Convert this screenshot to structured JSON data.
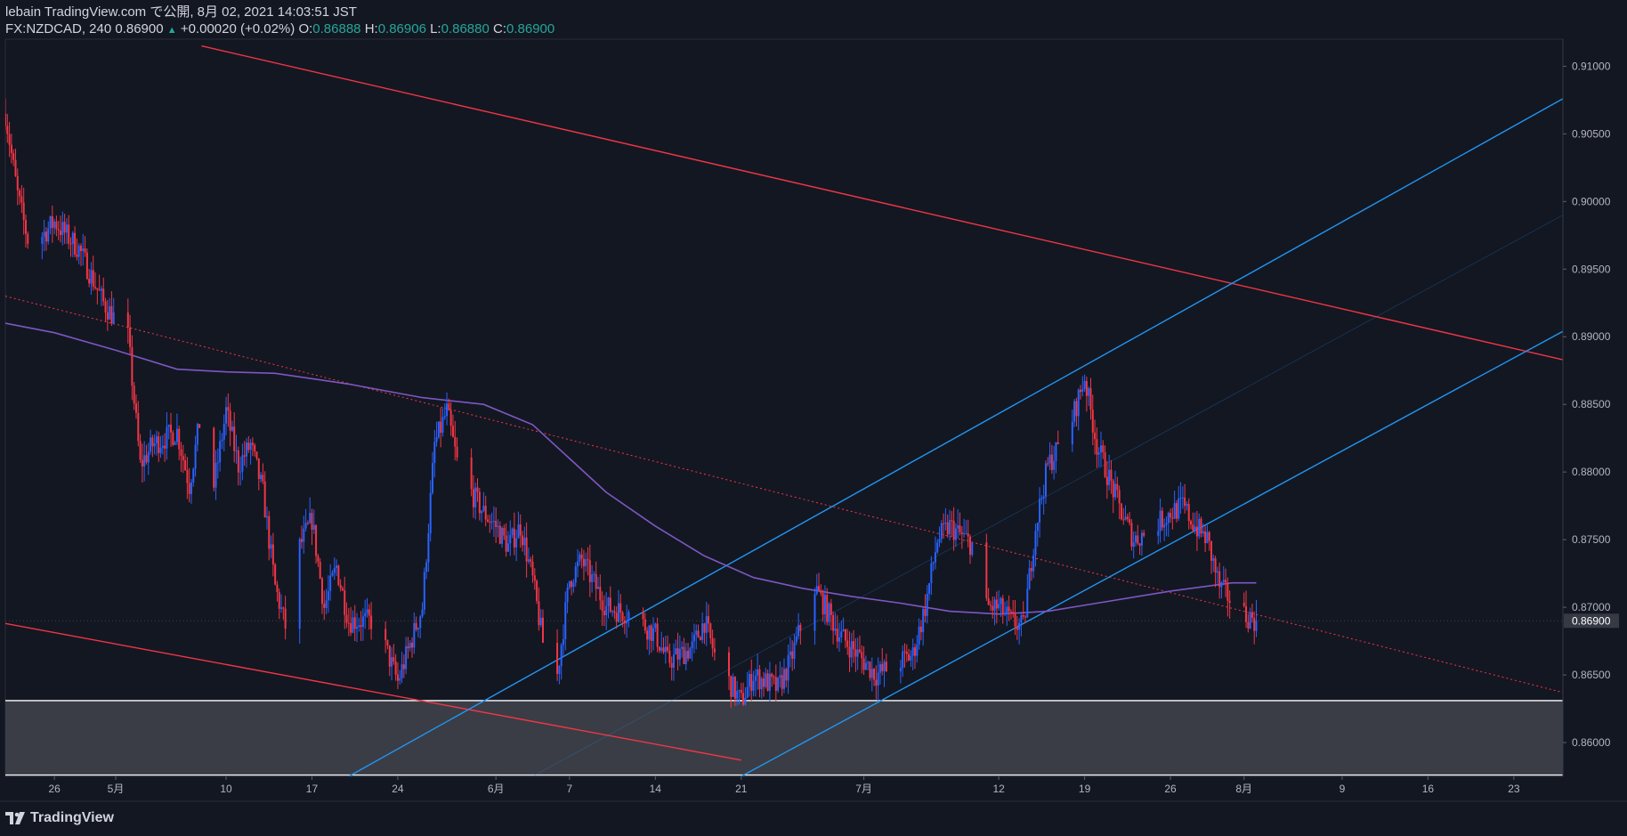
{
  "header": {
    "publish_line": "lebain TradingView.com で公開, 8月 02, 2021 14:03:51 JST",
    "symbol_line": "FX:NZDCAD, 240 0.86900",
    "change": "+0.00020 (+0.02%)",
    "o_label": "O:",
    "o_value": "0.86888",
    "h_label": "H:",
    "h_value": "0.86906",
    "l_label": "L:",
    "l_value": "0.86880",
    "c_label": "C:",
    "c_value": "0.86900"
  },
  "footer": {
    "brand": "TradingView",
    "logo_icon": "tradingview-logo-icon"
  },
  "colors": {
    "background": "#131722",
    "up": "#2962ff",
    "down": "#f23645",
    "channel_red": "#f23645",
    "channel_blue": "#2196f3",
    "ma": "#7e57c2",
    "zone_fill": "#3a3d46",
    "zone_border": "#ffffff",
    "price_label_bg": "#363a45"
  },
  "chart_data": {
    "type": "candlestick",
    "timeframe": "240",
    "ylim": [
      0.8575,
      0.912
    ],
    "xlim": [
      "2021-04-22",
      "2021-08-27"
    ],
    "y_ticks": [
      "0.91000",
      "0.90500",
      "0.90000",
      "0.89500",
      "0.89000",
      "0.88500",
      "0.88000",
      "0.87500",
      "0.87000",
      "0.86500",
      "0.86000"
    ],
    "current_price": "0.86900",
    "x_ticks": [
      {
        "label": "26",
        "date": "2021-04-26"
      },
      {
        "label": "5月",
        "date": "2021-05-01"
      },
      {
        "label": "10",
        "date": "2021-05-10"
      },
      {
        "label": "17",
        "date": "2021-05-17"
      },
      {
        "label": "24",
        "date": "2021-05-24"
      },
      {
        "label": "6月",
        "date": "2021-06-01"
      },
      {
        "label": "7",
        "date": "2021-06-07"
      },
      {
        "label": "14",
        "date": "2021-06-14"
      },
      {
        "label": "21",
        "date": "2021-06-21"
      },
      {
        "label": "7月",
        "date": "2021-07-01"
      },
      {
        "label": "12",
        "date": "2021-07-12"
      },
      {
        "label": "19",
        "date": "2021-07-19"
      },
      {
        "label": "26",
        "date": "2021-07-26"
      },
      {
        "label": "8月",
        "date": "2021-08-01"
      },
      {
        "label": "9",
        "date": "2021-08-09"
      },
      {
        "label": "16",
        "date": "2021-08-16"
      },
      {
        "label": "23",
        "date": "2021-08-23"
      }
    ],
    "price_path": [
      [
        "2021-04-22",
        0.9065
      ],
      [
        "2021-04-23",
        0.9005
      ],
      [
        "2021-04-24",
        0.8965
      ],
      [
        "2021-04-26",
        0.8985
      ],
      [
        "2021-04-28",
        0.8965
      ],
      [
        "2021-04-30",
        0.8925
      ],
      [
        "2021-05-02",
        0.89
      ],
      [
        "2021-05-03",
        0.8805
      ],
      [
        "2021-05-04",
        0.882
      ],
      [
        "2021-05-06",
        0.883
      ],
      [
        "2021-05-07",
        0.879
      ],
      [
        "2021-05-08",
        0.8845
      ],
      [
        "2021-05-09",
        0.879
      ],
      [
        "2021-05-10",
        0.8845
      ],
      [
        "2021-05-11",
        0.8805
      ],
      [
        "2021-05-12",
        0.882
      ],
      [
        "2021-05-13",
        0.8785
      ],
      [
        "2021-05-14",
        0.8715
      ],
      [
        "2021-05-15",
        0.868
      ],
      [
        "2021-05-16",
        0.8745
      ],
      [
        "2021-05-17",
        0.8765
      ],
      [
        "2021-05-18",
        0.87
      ],
      [
        "2021-05-19",
        0.873
      ],
      [
        "2021-05-20",
        0.869
      ],
      [
        "2021-05-22",
        0.869
      ],
      [
        "2021-05-23",
        0.867
      ],
      [
        "2021-05-24",
        0.8645
      ],
      [
        "2021-05-26",
        0.87
      ],
      [
        "2021-05-27",
        0.882
      ],
      [
        "2021-05-28",
        0.8845
      ],
      [
        "2021-05-29",
        0.88
      ],
      [
        "2021-05-31",
        0.877
      ],
      [
        "2021-06-01",
        0.876
      ],
      [
        "2021-06-02",
        0.8745
      ],
      [
        "2021-06-03",
        0.876
      ],
      [
        "2021-06-04",
        0.872
      ],
      [
        "2021-06-05",
        0.8665
      ],
      [
        "2021-06-06",
        0.865
      ],
      [
        "2021-06-07",
        0.872
      ],
      [
        "2021-06-08",
        0.8735
      ],
      [
        "2021-06-10",
        0.87
      ],
      [
        "2021-06-12",
        0.8695
      ],
      [
        "2021-06-14",
        0.868
      ],
      [
        "2021-06-15",
        0.866
      ],
      [
        "2021-06-17",
        0.867
      ],
      [
        "2021-06-18",
        0.869
      ],
      [
        "2021-06-19",
        0.866
      ],
      [
        "2021-06-21",
        0.863
      ],
      [
        "2021-06-22",
        0.865
      ],
      [
        "2021-06-24",
        0.864
      ],
      [
        "2021-06-25",
        0.866
      ],
      [
        "2021-06-26",
        0.869
      ],
      [
        "2021-06-27",
        0.8715
      ],
      [
        "2021-06-29",
        0.868
      ],
      [
        "2021-07-01",
        0.866
      ],
      [
        "2021-07-02",
        0.865
      ],
      [
        "2021-07-04",
        0.866
      ],
      [
        "2021-07-05",
        0.8665
      ],
      [
        "2021-07-06",
        0.87
      ],
      [
        "2021-07-07",
        0.875
      ],
      [
        "2021-07-08",
        0.876
      ],
      [
        "2021-07-10",
        0.8745
      ],
      [
        "2021-07-11",
        0.87
      ],
      [
        "2021-07-12",
        0.87
      ],
      [
        "2021-07-13",
        0.869
      ],
      [
        "2021-07-14",
        0.8685
      ],
      [
        "2021-07-15",
        0.876
      ],
      [
        "2021-07-16",
        0.8805
      ],
      [
        "2021-07-17",
        0.882
      ],
      [
        "2021-07-18",
        0.884
      ],
      [
        "2021-07-19",
        0.887
      ],
      [
        "2021-07-20",
        0.882
      ],
      [
        "2021-07-21",
        0.8795
      ],
      [
        "2021-07-22",
        0.877
      ],
      [
        "2021-07-23",
        0.875
      ],
      [
        "2021-07-24",
        0.8755
      ],
      [
        "2021-07-26",
        0.877
      ],
      [
        "2021-07-27",
        0.8775
      ],
      [
        "2021-07-28",
        0.876
      ],
      [
        "2021-07-29",
        0.875
      ],
      [
        "2021-07-30",
        0.8715
      ],
      [
        "2021-07-31",
        0.8705
      ],
      [
        "2021-08-01",
        0.8695
      ],
      [
        "2021-08-02",
        0.869
      ]
    ],
    "moving_average": {
      "points": [
        [
          "2021-04-22",
          0.891
        ],
        [
          "2021-04-26",
          0.8903
        ],
        [
          "2021-05-01",
          0.889
        ],
        [
          "2021-05-06",
          0.8876
        ],
        [
          "2021-05-10",
          0.8874
        ],
        [
          "2021-05-14",
          0.8873
        ],
        [
          "2021-05-20",
          0.8865
        ],
        [
          "2021-05-26",
          0.8855
        ],
        [
          "2021-05-31",
          0.885
        ],
        [
          "2021-06-04",
          0.8835
        ],
        [
          "2021-06-07",
          0.881
        ],
        [
          "2021-06-10",
          0.8785
        ],
        [
          "2021-06-14",
          0.876
        ],
        [
          "2021-06-18",
          0.8738
        ],
        [
          "2021-06-22",
          0.8722
        ],
        [
          "2021-06-26",
          0.8714
        ],
        [
          "2021-06-30",
          0.8708
        ],
        [
          "2021-07-04",
          0.8703
        ],
        [
          "2021-07-08",
          0.8697
        ],
        [
          "2021-07-12",
          0.8695
        ],
        [
          "2021-07-16",
          0.8697
        ],
        [
          "2021-07-20",
          0.8703
        ],
        [
          "2021-07-26",
          0.8712
        ],
        [
          "2021-07-31",
          0.8718
        ],
        [
          "2021-08-02",
          0.8718
        ]
      ]
    },
    "lines": [
      {
        "name": "red-channel-upper",
        "color": "#f23645",
        "width": 1.4,
        "x1": "2021-05-08",
        "y1": 0.9115,
        "x2": "2021-08-27",
        "y2": 0.8883
      },
      {
        "name": "red-channel-lower",
        "color": "#f23645",
        "width": 1.4,
        "x1": "2021-04-22",
        "y1": 0.8688,
        "x2": "2021-06-21",
        "y2": 0.8587
      },
      {
        "name": "red-dotted-trend",
        "color": "#f23645",
        "width": 1,
        "dash": "2,3",
        "x1": "2021-04-22",
        "y1": 0.893,
        "x2": "2021-08-27",
        "y2": 0.8637
      },
      {
        "name": "blue-channel-upper",
        "color": "#2196f3",
        "width": 1.4,
        "x1": "2021-05-20",
        "y1": 0.8575,
        "x2": "2021-08-27",
        "y2": 0.9076
      },
      {
        "name": "blue-channel-lower",
        "color": "#2196f3",
        "width": 1.4,
        "x1": "2021-06-21",
        "y1": 0.8575,
        "x2": "2021-08-27",
        "y2": 0.8904
      },
      {
        "name": "blue-channel-mid",
        "color": "#2196f3",
        "width": 0.6,
        "opacity": 0.35,
        "x1": "2021-06-04",
        "y1": 0.8575,
        "x2": "2021-08-27",
        "y2": 0.899
      }
    ],
    "zone": {
      "top": 0.8631,
      "bottom": 0.8576
    }
  }
}
